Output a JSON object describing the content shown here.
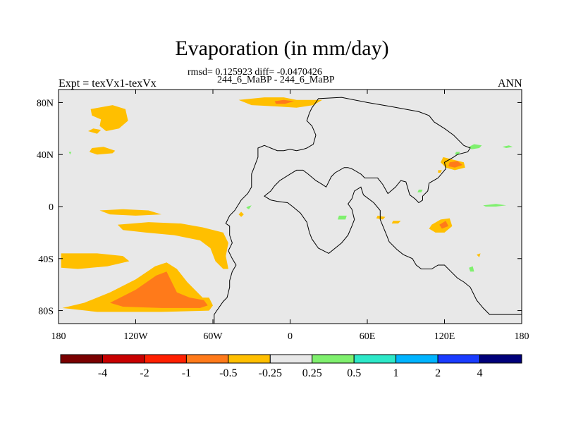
{
  "figure": {
    "title": "Evaporation (in mm/day)",
    "stats_line": "rmsd= 0.125923 diff= -0.0470426",
    "case_line": "244_6_MaBP - 244_6_MaBP",
    "left_label": "Expt = texVx1-texVx",
    "right_label": "ANN"
  },
  "chart_data": {
    "type": "heatmap",
    "title": "Evaporation (in mm/day)",
    "subtitle": "244_6_MaBP - 244_6_MaBP",
    "annotation": "rmsd= 0.125923 diff= -0.0470426",
    "x_ticks": [
      "180",
      "120W",
      "60W",
      "0",
      "60E",
      "120E",
      "180"
    ],
    "x_tick_values": [
      -180,
      -120,
      -60,
      0,
      60,
      120,
      180
    ],
    "y_ticks": [
      "80N",
      "40N",
      "0",
      "40S",
      "80S"
    ],
    "y_tick_values": [
      80,
      40,
      0,
      -40,
      -80
    ],
    "xlim": [
      -180,
      180
    ],
    "ylim": [
      -90,
      90
    ],
    "colorbar": {
      "levels": [
        "-4",
        "-2",
        "-1",
        "-0.5",
        "-0.25",
        "0.25",
        "0.5",
        "1",
        "2",
        "4"
      ],
      "level_values": [
        -4,
        -2,
        -1,
        -0.5,
        -0.25,
        0.25,
        0.5,
        1,
        2,
        4
      ],
      "colors": [
        "#7a0000",
        "#c80000",
        "#ff2000",
        "#ff7a1a",
        "#ffbf00",
        "#e8e8e8",
        "#7ff06e",
        "#2de8c8",
        "#00b4ff",
        "#1a3cff",
        "#00007a"
      ]
    },
    "background_color": "#e8e8e8",
    "regions": [
      {
        "bin": "-0.5",
        "color": "#ffbf00",
        "points": [
          [
            -155,
            75
          ],
          [
            -138,
            78
          ],
          [
            -128,
            75
          ],
          [
            -126,
            66
          ],
          [
            -133,
            60
          ],
          [
            -143,
            58
          ],
          [
            -148,
            62
          ],
          [
            -147,
            67
          ],
          [
            -154,
            70
          ]
        ]
      },
      {
        "bin": "-0.5",
        "color": "#ffbf00",
        "points": [
          [
            -157,
            58
          ],
          [
            -153,
            60
          ],
          [
            -147,
            59
          ],
          [
            -150,
            56
          ]
        ]
      },
      {
        "bin": "-0.5",
        "color": "#ffbf00",
        "points": [
          [
            -154,
            45
          ],
          [
            -145,
            46
          ],
          [
            -136,
            43
          ],
          [
            -138,
            41
          ],
          [
            -150,
            40
          ],
          [
            -156,
            42
          ]
        ]
      },
      {
        "bin": "-0.5",
        "color": "#ffbf00",
        "points": [
          [
            -40,
            82
          ],
          [
            -20,
            84
          ],
          [
            -5,
            84
          ],
          [
            5,
            82
          ],
          [
            15,
            82
          ],
          [
            25,
            82
          ],
          [
            18,
            78
          ],
          [
            5,
            76
          ],
          [
            -10,
            77
          ],
          [
            -30,
            78
          ]
        ]
      },
      {
        "bin": "-1",
        "color": "#ff7a1a",
        "points": [
          [
            -12,
            81
          ],
          [
            -5,
            82
          ],
          [
            3,
            81
          ],
          [
            -4,
            79
          ],
          [
            -11,
            79
          ]
        ]
      },
      {
        "bin": "-0.5",
        "color": "#ffbf00",
        "points": [
          [
            -148,
            -3
          ],
          [
            -130,
            -2
          ],
          [
            -110,
            -3
          ],
          [
            -100,
            -6
          ],
          [
            -120,
            -7
          ],
          [
            -140,
            -6
          ]
        ]
      },
      {
        "bin": "-0.5",
        "color": "#ffbf00",
        "points": [
          [
            -134,
            -14
          ],
          [
            -110,
            -12
          ],
          [
            -85,
            -13
          ],
          [
            -68,
            -16
          ],
          [
            -52,
            -20
          ],
          [
            -48,
            -28
          ],
          [
            -50,
            -38
          ],
          [
            -48,
            -48
          ],
          [
            -52,
            -48
          ],
          [
            -58,
            -42
          ],
          [
            -62,
            -32
          ],
          [
            -70,
            -26
          ],
          [
            -90,
            -22
          ],
          [
            -112,
            -20
          ],
          [
            -130,
            -18
          ]
        ]
      },
      {
        "bin": "-0.5",
        "color": "#ffbf00",
        "points": [
          [
            -178,
            -36
          ],
          [
            -150,
            -36
          ],
          [
            -130,
            -38
          ],
          [
            -125,
            -42
          ],
          [
            -142,
            -46
          ],
          [
            -165,
            -48
          ],
          [
            -178,
            -47
          ]
        ]
      },
      {
        "bin": "-0.5",
        "color": "#ffbf00",
        "points": [
          [
            -177,
            -78
          ],
          [
            -160,
            -74
          ],
          [
            -140,
            -66
          ],
          [
            -120,
            -56
          ],
          [
            -105,
            -46
          ],
          [
            -96,
            -43
          ],
          [
            -88,
            -48
          ],
          [
            -80,
            -58
          ],
          [
            -72,
            -66
          ],
          [
            -68,
            -70
          ],
          [
            -63,
            -70
          ],
          [
            -60,
            -76
          ],
          [
            -63,
            -80
          ],
          [
            -100,
            -81
          ],
          [
            -150,
            -81
          ]
        ]
      },
      {
        "bin": "-1",
        "color": "#ff7a1a",
        "points": [
          [
            -140,
            -74
          ],
          [
            -120,
            -64
          ],
          [
            -104,
            -53
          ],
          [
            -96,
            -50
          ],
          [
            -92,
            -58
          ],
          [
            -88,
            -66
          ],
          [
            -78,
            -70
          ],
          [
            -67,
            -72
          ],
          [
            -64,
            -76
          ],
          [
            -70,
            -78
          ],
          [
            -100,
            -78
          ],
          [
            -130,
            -77
          ]
        ]
      },
      {
        "bin": "-0.5",
        "color": "#ffbf00",
        "points": [
          [
            119,
            38
          ],
          [
            127,
            36
          ],
          [
            135,
            34
          ],
          [
            136,
            30
          ],
          [
            128,
            28
          ],
          [
            121,
            30
          ],
          [
            117,
            34
          ]
        ]
      },
      {
        "bin": "-1",
        "color": "#ff7a1a",
        "points": [
          [
            124,
            34
          ],
          [
            130,
            35
          ],
          [
            134,
            32
          ],
          [
            128,
            30
          ],
          [
            123,
            31
          ]
        ]
      },
      {
        "bin": "-0.5",
        "color": "#ffbf00",
        "points": [
          [
            110,
            -14
          ],
          [
            117,
            -10
          ],
          [
            124,
            -9
          ],
          [
            126,
            -15
          ],
          [
            120,
            -20
          ],
          [
            113,
            -20
          ],
          [
            108,
            -17
          ]
        ]
      },
      {
        "bin": "-1",
        "color": "#ff7a1a",
        "points": [
          [
            116,
            -14
          ],
          [
            121,
            -11
          ],
          [
            123,
            -15
          ],
          [
            118,
            -17
          ]
        ]
      },
      {
        "bin": "-0.5",
        "color": "#ffbf00",
        "points": [
          [
            115,
            28
          ],
          [
            118,
            28
          ],
          [
            117,
            26
          ],
          [
            115,
            26
          ]
        ]
      },
      {
        "bin": "-0.5",
        "color": "#ffbf00",
        "points": [
          [
            80,
            -11
          ],
          [
            86,
            -11
          ],
          [
            84,
            -13
          ],
          [
            79,
            -13
          ]
        ]
      },
      {
        "bin": "-0.5",
        "color": "#ffbf00",
        "points": [
          [
            68,
            -7
          ],
          [
            74,
            -8
          ],
          [
            72,
            -10
          ],
          [
            67,
            -9
          ]
        ]
      },
      {
        "bin": "-0.5",
        "color": "#ffbf00",
        "points": [
          [
            -38,
            -4
          ],
          [
            -36,
            -6
          ],
          [
            -38,
            -8
          ],
          [
            -40,
            -6
          ]
        ]
      },
      {
        "bin": "0.5",
        "color": "#7ff06e",
        "points": [
          [
            -33,
            0
          ],
          [
            -30,
            1
          ],
          [
            -32,
            -2
          ],
          [
            -34,
            -1
          ]
        ]
      },
      {
        "bin": "0.5",
        "color": "#7ff06e",
        "points": [
          [
            139,
            46
          ],
          [
            143,
            48
          ],
          [
            149,
            47
          ],
          [
            147,
            45
          ],
          [
            141,
            44
          ]
        ]
      },
      {
        "bin": "0.5",
        "color": "#7ff06e",
        "points": [
          [
            165,
            46
          ],
          [
            170,
            47
          ],
          [
            173,
            46
          ],
          [
            168,
            45
          ]
        ]
      },
      {
        "bin": "0.5",
        "color": "#7ff06e",
        "points": [
          [
            129,
            42
          ],
          [
            132,
            42
          ],
          [
            131,
            40
          ],
          [
            128,
            40
          ]
        ]
      },
      {
        "bin": "0.5",
        "color": "#7ff06e",
        "points": [
          [
            150,
            1
          ],
          [
            160,
            2
          ],
          [
            168,
            1
          ],
          [
            160,
            0
          ],
          [
            152,
            0
          ]
        ]
      },
      {
        "bin": "0.5",
        "color": "#7ff06e",
        "points": [
          [
            38,
            -7
          ],
          [
            44,
            -7
          ],
          [
            43,
            -10
          ],
          [
            37,
            -10
          ]
        ]
      },
      {
        "bin": "0.5",
        "color": "#7ff06e",
        "points": [
          [
            100,
            13
          ],
          [
            103,
            13
          ],
          [
            102,
            11
          ],
          [
            99,
            11
          ]
        ]
      },
      {
        "bin": "0.5",
        "color": "#7ff06e",
        "points": [
          [
            139,
            -47
          ],
          [
            142,
            -46
          ],
          [
            143,
            -50
          ],
          [
            140,
            -50
          ]
        ]
      },
      {
        "bin": "0.5",
        "color": "#7ff06e",
        "points": [
          [
            -172,
            42
          ],
          [
            -170,
            42
          ],
          [
            -171,
            40
          ]
        ]
      },
      {
        "bin": "-0.5",
        "color": "#ffbf00",
        "points": [
          [
            145,
            -37
          ],
          [
            148,
            -36
          ],
          [
            147,
            -39
          ]
        ]
      }
    ],
    "outline": [
      [
        -59,
        -90
      ],
      [
        -59,
        -83
      ],
      [
        -57,
        -80
      ],
      [
        -52,
        -73
      ],
      [
        -49,
        -70
      ],
      [
        -47,
        -62
      ],
      [
        -47,
        -57
      ],
      [
        -45,
        -50
      ],
      [
        -42,
        -45
      ],
      [
        -45,
        -40
      ],
      [
        -48,
        -34
      ],
      [
        -45,
        -28
      ],
      [
        -47,
        -22
      ],
      [
        -47,
        -15
      ],
      [
        -50,
        -13
      ],
      [
        -47,
        -7
      ],
      [
        -43,
        -3
      ],
      [
        -38,
        5
      ],
      [
        -33,
        10
      ],
      [
        -30,
        15
      ],
      [
        -30,
        25
      ],
      [
        -28,
        30
      ],
      [
        -25,
        38
      ],
      [
        -25,
        45
      ],
      [
        -20,
        47
      ],
      [
        -15,
        45
      ],
      [
        -10,
        43
      ],
      [
        -5,
        43
      ],
      [
        0,
        44
      ],
      [
        5,
        43
      ],
      [
        10,
        44
      ],
      [
        13,
        45
      ],
      [
        18,
        48
      ],
      [
        20,
        55
      ],
      [
        17,
        62
      ],
      [
        13,
        66
      ],
      [
        15,
        72
      ],
      [
        17,
        76
      ],
      [
        20,
        80
      ],
      [
        22,
        83
      ],
      [
        40,
        84
      ],
      [
        60,
        80
      ],
      [
        78,
        77
      ],
      [
        100,
        73
      ],
      [
        108,
        70
      ],
      [
        112,
        65
      ],
      [
        120,
        60
      ],
      [
        127,
        55
      ],
      [
        132,
        50
      ],
      [
        135,
        47
      ],
      [
        140,
        45
      ],
      [
        138,
        42
      ],
      [
        130,
        40
      ],
      [
        127,
        38
      ],
      [
        120,
        34
      ],
      [
        121,
        29
      ],
      [
        115,
        22
      ],
      [
        108,
        18
      ],
      [
        107,
        12
      ],
      [
        103,
        8
      ],
      [
        103,
        5
      ],
      [
        100,
        3
      ],
      [
        97,
        6
      ],
      [
        93,
        9
      ],
      [
        90,
        19
      ],
      [
        86,
        20
      ],
      [
        82,
        15
      ],
      [
        76,
        10
      ],
      [
        72,
        17
      ],
      [
        68,
        22
      ],
      [
        58,
        22
      ],
      [
        55,
        25
      ],
      [
        48,
        29
      ],
      [
        45,
        30
      ],
      [
        42,
        30
      ],
      [
        35,
        26
      ],
      [
        32,
        23
      ],
      [
        28,
        15
      ],
      [
        25,
        17
      ],
      [
        20,
        20
      ],
      [
        14,
        25
      ],
      [
        10,
        28
      ],
      [
        5,
        28
      ],
      [
        0,
        25
      ],
      [
        -8,
        20
      ],
      [
        -12,
        16
      ],
      [
        -15,
        12
      ],
      [
        -20,
        8
      ],
      [
        -15,
        5
      ],
      [
        -10,
        4
      ],
      [
        -2,
        3
      ],
      [
        2,
        0
      ],
      [
        8,
        -5
      ],
      [
        13,
        -12
      ],
      [
        15,
        -20
      ],
      [
        17,
        -25
      ],
      [
        22,
        -32
      ],
      [
        30,
        -36
      ],
      [
        40,
        -28
      ],
      [
        45,
        -22
      ],
      [
        48,
        -15
      ],
      [
        50,
        -10
      ],
      [
        48,
        -2
      ],
      [
        45,
        2
      ],
      [
        48,
        6
      ],
      [
        50,
        12
      ],
      [
        55,
        15
      ],
      [
        57,
        9
      ],
      [
        65,
        3
      ],
      [
        70,
        -3
      ],
      [
        70,
        -10
      ],
      [
        75,
        -22
      ],
      [
        77,
        -27
      ],
      [
        83,
        -33
      ],
      [
        88,
        -37
      ],
      [
        95,
        -40
      ],
      [
        98,
        -45
      ],
      [
        102,
        -48
      ],
      [
        110,
        -48
      ],
      [
        115,
        -45
      ],
      [
        120,
        -45
      ],
      [
        125,
        -50
      ],
      [
        130,
        -55
      ],
      [
        135,
        -58
      ],
      [
        140,
        -62
      ],
      [
        143,
        -68
      ],
      [
        145,
        -72
      ],
      [
        150,
        -78
      ],
      [
        155,
        -83
      ],
      [
        175,
        -83
      ],
      [
        180,
        -83
      ]
    ]
  }
}
